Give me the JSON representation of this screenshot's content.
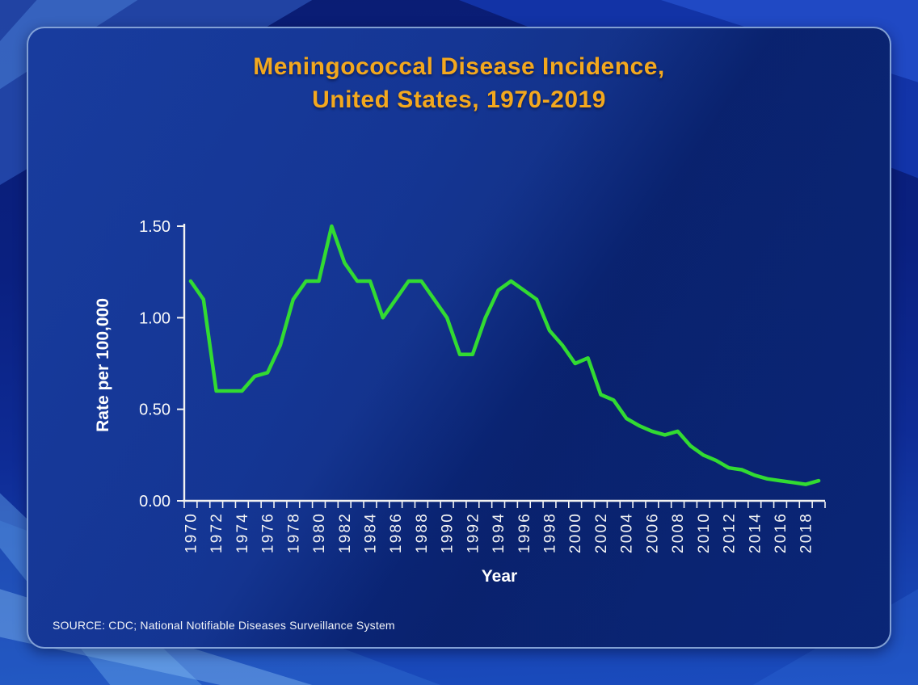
{
  "slide": {
    "title": "Meningococcal Disease Incidence,\nUnited States, 1970-2019",
    "source": "SOURCE: CDC; National Notifiable Diseases Surveillance System"
  },
  "colors": {
    "title_text": "#F3A81E",
    "line_green": "#32DB32",
    "axis_white": "#F2F2F2",
    "panel_blue": "#0B2A80",
    "background_blue": "#0E2B95"
  },
  "chart_data": {
    "type": "line",
    "title": "Meningococcal Disease Incidence, United States, 1970-2019",
    "xlabel": "Year",
    "ylabel": "Rate per 100,000",
    "x": [
      1970,
      1971,
      1972,
      1973,
      1974,
      1975,
      1976,
      1977,
      1978,
      1979,
      1980,
      1981,
      1982,
      1983,
      1984,
      1985,
      1986,
      1987,
      1988,
      1989,
      1990,
      1991,
      1992,
      1993,
      1994,
      1995,
      1996,
      1997,
      1998,
      1999,
      2000,
      2001,
      2002,
      2003,
      2004,
      2005,
      2006,
      2007,
      2008,
      2009,
      2010,
      2011,
      2012,
      2013,
      2014,
      2015,
      2016,
      2017,
      2018,
      2019
    ],
    "values": [
      1.2,
      1.1,
      0.6,
      0.6,
      0.6,
      0.68,
      0.7,
      0.85,
      1.1,
      1.2,
      1.2,
      1.5,
      1.3,
      1.2,
      1.2,
      1.0,
      1.1,
      1.2,
      1.2,
      1.1,
      1.0,
      0.8,
      0.8,
      1.0,
      1.15,
      1.2,
      1.15,
      1.1,
      0.93,
      0.85,
      0.75,
      0.78,
      0.58,
      0.55,
      0.45,
      0.41,
      0.38,
      0.36,
      0.38,
      0.3,
      0.25,
      0.22,
      0.18,
      0.17,
      0.14,
      0.12,
      0.11,
      0.1,
      0.09,
      0.11
    ],
    "ylim": [
      0,
      1.5
    ],
    "ytick_values": [
      0,
      0.5,
      1.0,
      1.5
    ],
    "ytick_labels": [
      "0.00",
      "0.50",
      "1.00",
      "1.50"
    ],
    "xtick_label_step": 2,
    "grid": false,
    "legend": false,
    "line_color": "#32DB32",
    "axis_color": "#F2F2F2"
  }
}
